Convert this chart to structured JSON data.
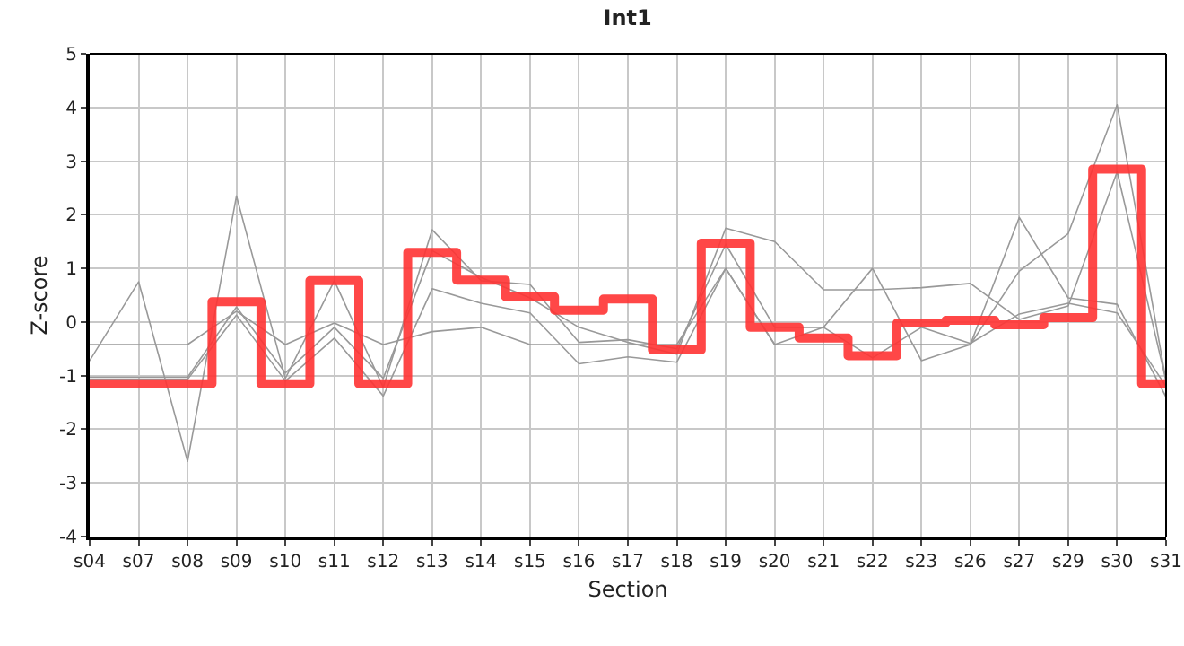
{
  "chart_data": {
    "type": "line",
    "title": "Int1",
    "xlabel": "Section",
    "ylabel": "Z-score",
    "categories": [
      "s04",
      "s07",
      "s08",
      "s09",
      "s10",
      "s11",
      "s12",
      "s13",
      "s14",
      "s15",
      "s16",
      "s17",
      "s18",
      "s19",
      "s20",
      "s21",
      "s22",
      "s23",
      "s26",
      "s27",
      "s29",
      "s30",
      "s31"
    ],
    "series": [
      {
        "color": "#999999",
        "values": [
          -0.42,
          -0.42,
          -0.42,
          0.2,
          -0.42,
          -0.02,
          -0.42,
          -0.18,
          -0.1,
          -0.42,
          -0.42,
          -0.42,
          -0.42,
          1.0,
          -0.42,
          -0.42,
          -0.42,
          -0.42,
          -0.42,
          0.95,
          1.65,
          4.05,
          -1.1
        ]
      },
      {
        "color": "#999999",
        "values": [
          -0.72,
          0.75,
          -2.6,
          2.35,
          -1.05,
          0.77,
          -1.22,
          1.72,
          0.77,
          0.7,
          -0.38,
          -0.33,
          -0.5,
          1.45,
          -0.1,
          -0.1,
          1.0,
          -0.72,
          -0.42,
          1.95,
          0.45,
          0.33,
          -1.4
        ]
      },
      {
        "color": "#999999",
        "values": [
          -1.03,
          -1.03,
          -1.03,
          0.28,
          -0.95,
          -0.1,
          -1.05,
          1.33,
          0.83,
          0.45,
          -0.1,
          -0.38,
          -0.6,
          1.75,
          1.5,
          0.6,
          0.6,
          0.64,
          0.72,
          0.05,
          0.3,
          2.8,
          -1.1
        ]
      },
      {
        "color": "#999999",
        "values": [
          -1.07,
          -1.07,
          -1.07,
          0.13,
          -1.1,
          -0.3,
          -1.38,
          0.62,
          0.35,
          0.17,
          -0.78,
          -0.65,
          -0.75,
          1.0,
          -0.42,
          -0.1,
          -0.67,
          -0.1,
          -0.4,
          0.15,
          0.35,
          0.17,
          -1.2
        ]
      },
      {
        "type": "step",
        "color": "#ff3333",
        "values": [
          -1.15,
          -1.15,
          -1.15,
          0.38,
          -1.15,
          0.77,
          -1.15,
          1.3,
          0.78,
          0.47,
          0.22,
          0.43,
          -0.52,
          1.47,
          -0.1,
          -0.3,
          -0.63,
          -0.02,
          0.03,
          -0.05,
          0.08,
          2.85,
          -1.15
        ]
      }
    ],
    "ylim": [
      -4,
      5
    ],
    "yticks": [
      -4,
      -3,
      -2,
      -1,
      0,
      1,
      2,
      3,
      4,
      5
    ],
    "grid": true,
    "marker": "none",
    "line_style": "solid"
  }
}
